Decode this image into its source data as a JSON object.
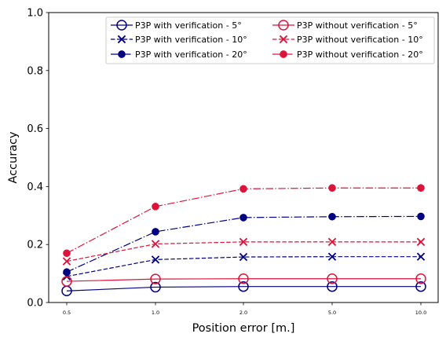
{
  "chart_data": {
    "type": "line",
    "title": "",
    "xlabel": "Position error [m.]",
    "ylabel": "Accuracy",
    "categories": [
      "0.5",
      "1.0",
      "2.0",
      "5.0",
      "10.0"
    ],
    "ylim": [
      0.0,
      1.0
    ],
    "yticks": [
      "0.0",
      "0.2",
      "0.4",
      "0.6",
      "0.8",
      "1.0"
    ],
    "grid": false,
    "legend_placement": "top-right",
    "legend_columns": 2,
    "series": [
      {
        "name": "P3P with verification - 5°",
        "values": [
          0.04,
          0.053,
          0.055,
          0.055,
          0.055
        ],
        "color": "#000080",
        "dash": "solid",
        "marker": "open-circle"
      },
      {
        "name": "P3P with verification - 10°",
        "values": [
          0.09,
          0.148,
          0.157,
          0.158,
          0.158
        ],
        "color": "#000080",
        "dash": "dashed",
        "marker": "x"
      },
      {
        "name": "P3P with verification - 20°",
        "values": [
          0.105,
          0.244,
          0.293,
          0.296,
          0.297
        ],
        "color": "#000080",
        "dash": "dashdot",
        "marker": "filled-circle"
      },
      {
        "name": "P3P without verification - 5°",
        "values": [
          0.073,
          0.081,
          0.082,
          0.082,
          0.082
        ],
        "color": "#dc143c",
        "dash": "solid",
        "marker": "open-circle"
      },
      {
        "name": "P3P without verification - 10°",
        "values": [
          0.142,
          0.202,
          0.209,
          0.209,
          0.209
        ],
        "color": "#dc143c",
        "dash": "dashed",
        "marker": "x"
      },
      {
        "name": "P3P without verification - 20°",
        "values": [
          0.17,
          0.331,
          0.392,
          0.395,
          0.395
        ],
        "color": "#dc143c",
        "dash": "dashdot",
        "marker": "filled-circle"
      }
    ]
  }
}
